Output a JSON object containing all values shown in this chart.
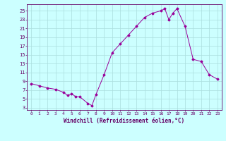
{
  "x": [
    0,
    1,
    2,
    3,
    4,
    4.5,
    5,
    5.5,
    6,
    7,
    7.5,
    8,
    9,
    10,
    11,
    12,
    13,
    14,
    15,
    16,
    16.5,
    17,
    17.5,
    18,
    19,
    20,
    21,
    22,
    23
  ],
  "y": [
    8.5,
    8.0,
    7.5,
    7.2,
    6.5,
    5.8,
    6.2,
    5.5,
    5.5,
    4.0,
    3.5,
    6.0,
    10.5,
    15.5,
    17.5,
    19.5,
    21.5,
    23.5,
    24.5,
    25.0,
    25.5,
    23.0,
    24.5,
    25.5,
    21.5,
    14.0,
    13.5,
    10.5,
    9.5
  ],
  "xlabel": "Windchill (Refroidissement éolien,°C)",
  "yticks": [
    3,
    5,
    7,
    9,
    11,
    13,
    15,
    17,
    19,
    21,
    23,
    25
  ],
  "xticks": [
    0,
    1,
    2,
    3,
    4,
    5,
    6,
    7,
    8,
    9,
    10,
    11,
    12,
    13,
    14,
    15,
    16,
    17,
    18,
    19,
    20,
    21,
    22,
    23
  ],
  "ylim": [
    2.5,
    26.5
  ],
  "xlim": [
    -0.5,
    23.5
  ],
  "line_color": "#990099",
  "bg_color": "#ccffff",
  "grid_color": "#aadddd",
  "label_color": "#660066",
  "spine_color": "#660066",
  "figsize": [
    3.2,
    2.0
  ],
  "dpi": 100
}
